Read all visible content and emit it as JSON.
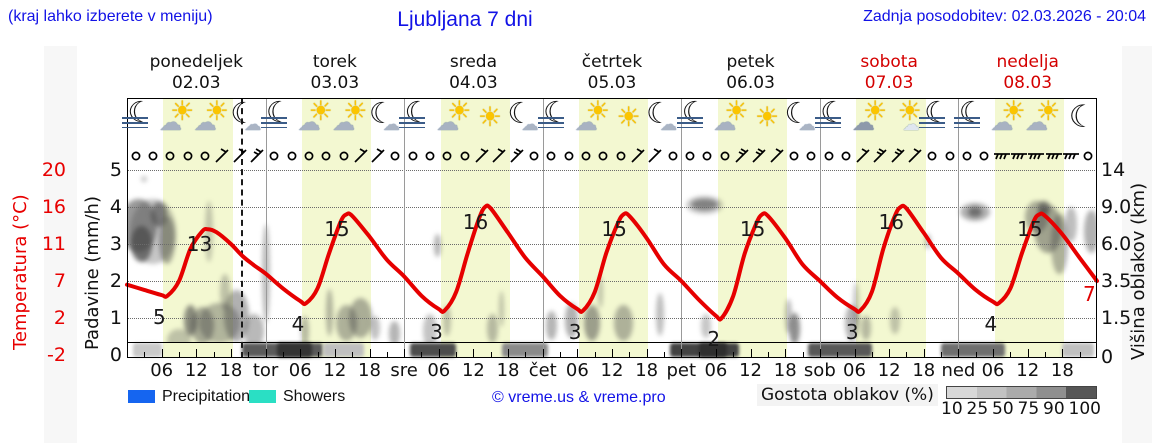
{
  "header": {
    "hint": "(kraj lahko izberete v meniju)",
    "title": "Ljubljana 7 dni",
    "last_update": "Zadnja posodobitev: 02.03.2026 - 20:04",
    "text_color": "#1212e6"
  },
  "days": [
    {
      "name": "ponedeljek",
      "date": "02.03",
      "color": "#111111"
    },
    {
      "name": "torek",
      "date": "03.03",
      "color": "#111111"
    },
    {
      "name": "sreda",
      "date": "04.03",
      "color": "#111111"
    },
    {
      "name": "četrtek",
      "date": "05.03",
      "color": "#111111"
    },
    {
      "name": "petek",
      "date": "06.03",
      "color": "#111111"
    },
    {
      "name": "sobota",
      "date": "07.03",
      "color": "#d40000"
    },
    {
      "name": "nedelja",
      "date": "08.03",
      "color": "#d40000"
    }
  ],
  "axes": {
    "temperature": {
      "title": "Temperatura (°C)",
      "color": "#e80000",
      "tick_labels": [
        "20",
        "16",
        "11",
        "7",
        "2",
        "-2"
      ]
    },
    "precipitation": {
      "title": "Padavine (mm/h)",
      "color": "#111111",
      "tick_labels": [
        "5",
        "4",
        "3",
        "2",
        "1",
        "0"
      ]
    },
    "cloud_height": {
      "title": "Višina oblakov (km)",
      "color": "#111111",
      "tick_labels": [
        "14",
        "9.0",
        "6.0",
        "3.5",
        "1.5",
        "0"
      ]
    },
    "x": {
      "hour_labels": [
        "06",
        "12",
        "18"
      ],
      "day_abbr": [
        "tor",
        "sre",
        "čet",
        "pet",
        "sob",
        "ned"
      ]
    }
  },
  "chart_data": {
    "type": "line",
    "title": "Ljubljana 7 dni",
    "x_axis_hours_total": 168,
    "temperature_axis_anchors": [
      [
        -2,
        355
      ],
      [
        2,
        318
      ],
      [
        7,
        281
      ],
      [
        11,
        244
      ],
      [
        16,
        207
      ],
      [
        20,
        170
      ]
    ],
    "km_axis_anchors": [
      [
        0,
        356
      ],
      [
        1.5,
        318
      ],
      [
        3.5,
        281
      ],
      [
        6,
        244
      ],
      [
        9,
        207
      ],
      [
        14,
        170
      ]
    ],
    "series": [
      {
        "name": "Temperatura",
        "color": "#e60000",
        "x_hours": [
          0,
          3,
          6,
          7,
          9,
          11,
          13,
          14,
          15.5,
          18,
          20,
          22,
          24,
          27,
          30,
          31,
          33,
          35,
          37,
          38,
          39,
          42,
          45,
          48,
          51,
          54,
          55,
          57,
          59,
          61,
          62,
          63,
          66,
          69,
          72,
          75,
          78,
          79,
          81,
          83,
          85,
          86,
          87,
          90,
          93,
          96,
          99,
          102,
          103,
          105,
          107,
          109,
          110,
          111,
          114,
          117,
          120,
          123,
          126,
          127,
          129,
          131,
          133,
          134,
          135,
          138,
          141,
          144,
          147,
          150,
          151,
          153,
          155,
          157,
          158,
          159,
          162,
          165,
          168
        ],
        "values": [
          6.5,
          5.8,
          5.1,
          5,
          7,
          10.5,
          12.7,
          13,
          12.6,
          11,
          9.7,
          8.7,
          7.8,
          6,
          4.3,
          4,
          6,
          10,
          14,
          15,
          14.8,
          12,
          9.3,
          7.5,
          5,
          3.2,
          3,
          5.5,
          10,
          14.5,
          16,
          15.8,
          12.5,
          9.5,
          7.5,
          5,
          3.2,
          3,
          5.5,
          10,
          13.8,
          15,
          14.8,
          11.8,
          8.8,
          7,
          4.5,
          2.3,
          2,
          5,
          10,
          13.8,
          15,
          14.8,
          11.8,
          8.8,
          7,
          4.8,
          3.2,
          3,
          5.5,
          10.5,
          14.8,
          16,
          15.8,
          12.5,
          9.5,
          7.8,
          5.8,
          4.2,
          4,
          6,
          10,
          14,
          15,
          14.8,
          12.3,
          9.5,
          7
        ]
      }
    ],
    "daily_max_labels": [
      {
        "hour": 13.6,
        "value": 13
      },
      {
        "hour": 37.4,
        "value": 15
      },
      {
        "hour": 61.4,
        "value": 16
      },
      {
        "hour": 85.4,
        "value": 15
      },
      {
        "hour": 109.4,
        "value": 15
      },
      {
        "hour": 133.4,
        "value": 16
      },
      {
        "hour": 157.4,
        "value": 15
      }
    ],
    "daily_min_labels": [
      {
        "hour": 7,
        "value": 5
      },
      {
        "hour": 31,
        "value": 4
      },
      {
        "hour": 55,
        "value": 3
      },
      {
        "hour": 79,
        "value": 3
      },
      {
        "hour": 103,
        "value": 2
      },
      {
        "hour": 127,
        "value": 3
      },
      {
        "hour": 151,
        "value": 4
      }
    ],
    "end_label": {
      "hour": 168,
      "value": 7
    },
    "now_hour": 20,
    "daylight_band_hours": [
      6.3,
      18.3
    ],
    "daylight_band_color": "#f3f8d1",
    "weather_icons": [
      "moon-fog",
      "sun-cloud",
      "sun-cloud",
      "moon-cloud",
      "moon-fog",
      "sun-cloud",
      "sun-cloud",
      "moon-cloud",
      "moon-fog",
      "sun-cloud",
      "sun",
      "moon-cloud",
      "moon-fog",
      "sun-cloud",
      "sun",
      "moon-cloud",
      "moon-fog",
      "sun-cloud",
      "sun",
      "moon-cloud",
      "moon-fog",
      "sun-graycloud",
      "sun-smallcloud",
      "moon-fog",
      "moon-fog",
      "sun-cloud",
      "sun-cloud",
      "moon"
    ],
    "wind_symbols": [
      "calm",
      "calm",
      "calm",
      "calm",
      "calm",
      "b1",
      "b1",
      "b2",
      "calm",
      "calm",
      "calm",
      "calm",
      "calm",
      "b1",
      "b1",
      "calm",
      "calm",
      "calm",
      "calm",
      "calm",
      "b1",
      "b1",
      "b2",
      "calm",
      "calm",
      "calm",
      "calm",
      "calm",
      "calm",
      "b1",
      "b1",
      "calm",
      "calm",
      "calm",
      "calm",
      "b2",
      "b2",
      "b1",
      "calm",
      "calm",
      "calm",
      "calm",
      "b1",
      "b2",
      "b2",
      "b1",
      "calm",
      "calm",
      "calm",
      "calm",
      "bh",
      "bh",
      "bh",
      "bh",
      "bh",
      "calm"
    ],
    "clouds": [
      [
        2,
        7.5,
        3.2,
        2.2,
        0.55
      ],
      [
        4.5,
        7,
        4,
        2.6,
        0.3
      ],
      [
        2.5,
        6,
        1.8,
        1.3,
        0.7
      ],
      [
        5.5,
        8.4,
        1.4,
        1.1,
        0.6
      ],
      [
        7,
        6.3,
        1.4,
        1.8,
        0.45
      ],
      [
        3,
        12.8,
        0.5,
        0.45,
        0.3
      ],
      [
        14.2,
        7,
        0.7,
        2.4,
        0.28
      ],
      [
        9,
        0.6,
        2,
        0.45,
        0.3
      ],
      [
        11,
        1.4,
        1.2,
        0.7,
        0.6
      ],
      [
        13,
        1.2,
        2,
        0.8,
        0.45
      ],
      [
        16,
        1.3,
        3.5,
        0.9,
        0.38
      ],
      [
        19,
        1.6,
        2.2,
        1.2,
        0.42
      ],
      [
        22,
        1,
        1.8,
        0.7,
        0.38
      ],
      [
        17,
        2.9,
        0.9,
        1,
        0.3
      ],
      [
        24,
        4,
        0.7,
        3,
        0.35
      ],
      [
        30.8,
        1,
        0.7,
        0.6,
        0.35
      ],
      [
        35,
        1.8,
        0.6,
        1.1,
        0.38
      ],
      [
        38,
        1.3,
        1.8,
        0.8,
        0.4
      ],
      [
        40.5,
        1.5,
        2,
        0.9,
        0.42
      ],
      [
        43,
        1.1,
        0.9,
        0.5,
        0.33
      ],
      [
        46.3,
        0.9,
        1,
        0.5,
        0.4
      ],
      [
        53.7,
        5.9,
        0.6,
        0.85,
        0.4
      ],
      [
        52.5,
        1,
        1.2,
        0.7,
        0.32
      ],
      [
        55.5,
        1.4,
        0.7,
        0.7,
        0.3
      ],
      [
        63.3,
        1.1,
        0.9,
        0.6,
        0.35
      ],
      [
        64.8,
        2,
        0.45,
        0.9,
        0.3
      ],
      [
        73.5,
        1.2,
        0.9,
        0.6,
        0.4
      ],
      [
        77,
        1.4,
        1.1,
        0.8,
        0.42
      ],
      [
        80.5,
        1.3,
        1.4,
        0.8,
        0.5
      ],
      [
        82,
        2.9,
        0.45,
        0.9,
        0.3
      ],
      [
        86,
        1.3,
        1.6,
        0.8,
        0.4
      ],
      [
        92.3,
        1.7,
        0.7,
        1,
        0.35
      ],
      [
        100,
        9.3,
        2.4,
        0.65,
        0.55
      ],
      [
        100,
        9.3,
        3.2,
        1,
        0.28
      ],
      [
        100.3,
        1.2,
        0.8,
        0.5,
        0.3
      ],
      [
        115.6,
        1.1,
        0.9,
        0.65,
        0.6
      ],
      [
        114.5,
        1.6,
        0.6,
        0.8,
        0.35
      ],
      [
        125.5,
        1.3,
        1.2,
        0.8,
        0.4
      ],
      [
        126.3,
        2.3,
        0.5,
        1.1,
        0.3
      ],
      [
        128,
        1.1,
        0.8,
        0.5,
        0.35
      ],
      [
        133,
        1.4,
        0.9,
        0.6,
        0.3
      ],
      [
        138.7,
        6.2,
        0.5,
        0.55,
        0.35
      ],
      [
        146.8,
        8.6,
        2.6,
        0.8,
        0.42
      ],
      [
        146.8,
        8.6,
        1.2,
        0.4,
        0.62
      ],
      [
        157.5,
        8.2,
        2,
        1.4,
        0.42
      ],
      [
        159.5,
        7.2,
        2.4,
        1.9,
        0.48
      ],
      [
        161.5,
        6,
        1.4,
        2.2,
        0.4
      ],
      [
        158.8,
        8.9,
        1,
        0.7,
        0.6
      ],
      [
        163.5,
        7.6,
        1,
        1.4,
        0.35
      ],
      [
        167,
        7,
        1.3,
        1.7,
        0.42
      ]
    ],
    "low_cloud_strip": [
      [
        1,
        6,
        "#c9c9c9"
      ],
      [
        20,
        34,
        "#5a5a5a"
      ],
      [
        26,
        32,
        "#333333"
      ],
      [
        34,
        41,
        "#bfbfbf"
      ],
      [
        49,
        57,
        "#4c4c4c"
      ],
      [
        65,
        73,
        "#8a8a8a"
      ],
      [
        94,
        106,
        "#424242"
      ],
      [
        99,
        104,
        "#2e2e2e"
      ],
      [
        118,
        129,
        "#575757"
      ],
      [
        141,
        152,
        "#6e6e6e"
      ],
      [
        162,
        167.5,
        "#c0c0c0"
      ]
    ]
  },
  "legend": {
    "precipitation": {
      "label": "Precipitation",
      "color": "#1565f0"
    },
    "showers": {
      "label": "Showers",
      "color": "#2adfc4"
    },
    "copyright": "© vreme.us & vreme.pro",
    "cloud_density": {
      "label": "Gostota oblakov (%)",
      "tick_labels": [
        "10",
        "25",
        "50",
        "75",
        "90",
        "100"
      ],
      "shades": [
        "#d8d8d8",
        "#c2c2c2",
        "#ababab",
        "#8f8f8f",
        "#565656"
      ]
    }
  }
}
